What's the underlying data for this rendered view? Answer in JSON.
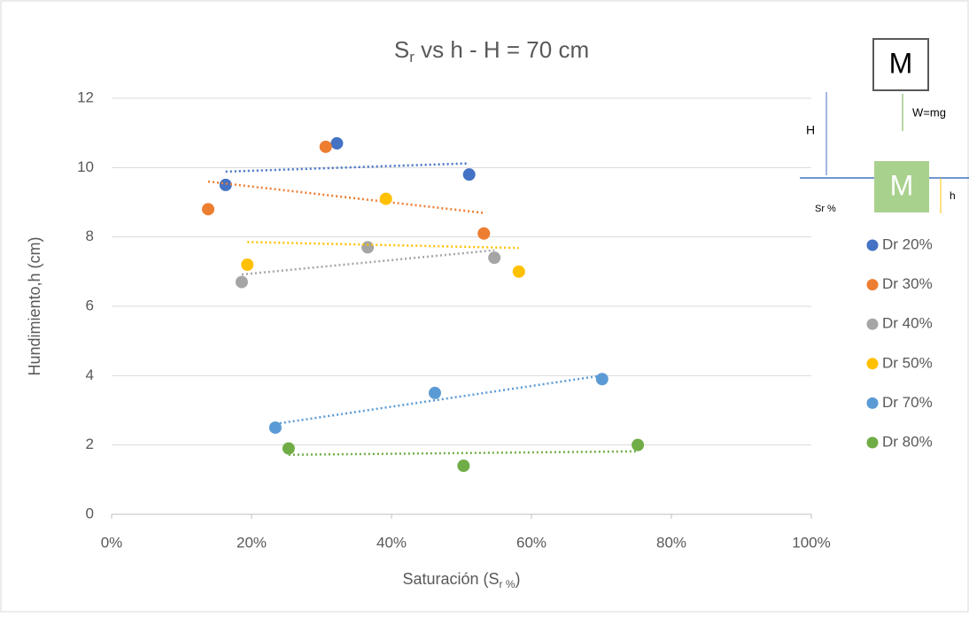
{
  "chart_data": {
    "type": "scatter",
    "title": {
      "main": "S",
      "sub": "r",
      "rest": " vs h - H = 70 cm"
    },
    "x_label": {
      "main": "Saturación (S",
      "sub": "r %",
      "rest": ")"
    },
    "y_label": "Hundimiento,h (cm)",
    "xlim": [
      0,
      100
    ],
    "ylim": [
      0,
      12
    ],
    "xticks": [
      {
        "value": 0,
        "label": "0%"
      },
      {
        "value": 20,
        "label": "20%"
      },
      {
        "value": 40,
        "label": "40%"
      },
      {
        "value": 60,
        "label": "60%"
      },
      {
        "value": 80,
        "label": "80%"
      },
      {
        "value": 100,
        "label": "100%"
      }
    ],
    "yticks": [
      0,
      2,
      4,
      6,
      8,
      10,
      12
    ],
    "grid": true,
    "trendline": "linear",
    "legend": "right",
    "series": [
      {
        "name": "Dr 20%",
        "color": "#4472c4",
        "x": [
          16.3,
          32.2,
          51.1
        ],
        "values": [
          9.5,
          10.7,
          9.8
        ]
      },
      {
        "name": "Dr 30%",
        "color": "#ed7d31",
        "x": [
          13.8,
          30.6,
          53.2
        ],
        "values": [
          8.8,
          10.6,
          8.1
        ]
      },
      {
        "name": "Dr 40%",
        "color": "#a5a5a5",
        "x": [
          18.6,
          36.6,
          54.7
        ],
        "values": [
          6.7,
          7.7,
          7.4
        ]
      },
      {
        "name": "Dr 50%",
        "color": "#ffc000",
        "x": [
          19.4,
          39.2,
          58.2
        ],
        "values": [
          7.2,
          9.1,
          7.0
        ]
      },
      {
        "name": "Dr 70%",
        "color": "#5b9bd5",
        "x": [
          23.4,
          46.2,
          70.1
        ],
        "values": [
          2.5,
          3.5,
          3.9
        ]
      },
      {
        "name": "Dr 80%",
        "color": "#70ad47",
        "x": [
          25.3,
          50.3,
          75.2
        ],
        "values": [
          1.9,
          1.4,
          2.0
        ]
      }
    ],
    "diagram": {
      "mass_top": "M",
      "weight": "W=mg",
      "height_big": "H",
      "saturation": "Sr %",
      "mass_bottom": "M",
      "height_small": "h"
    }
  }
}
